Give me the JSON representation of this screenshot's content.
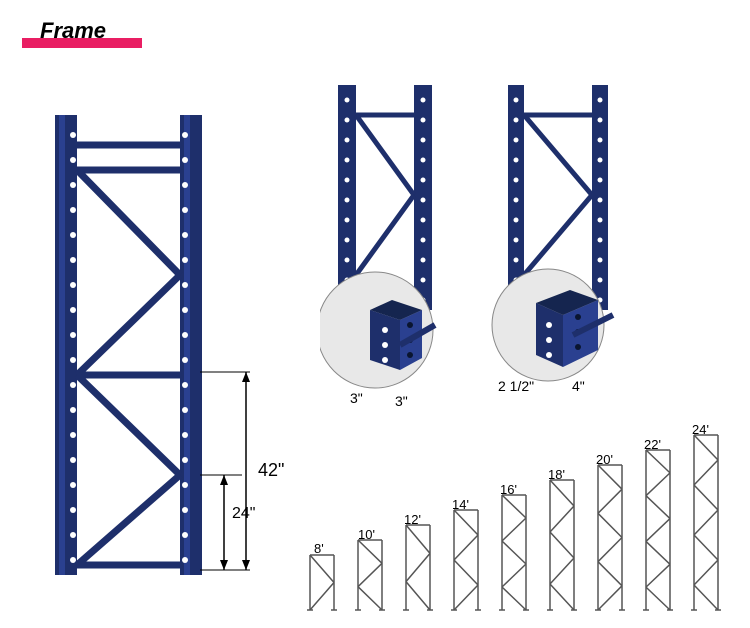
{
  "title": "Frame",
  "colors": {
    "accent_bar": "#e91e63",
    "frame_blue": "#1e2f6b",
    "frame_blue_light": "#2a4090",
    "frame_hole": "#ffffff",
    "detail_bg": "#e8e8e8",
    "outline_gray": "#555555",
    "dim_text": "#000000"
  },
  "dimensions": {
    "upper": "42\"",
    "lower": "24\""
  },
  "detail_a": {
    "left": "3\"",
    "right": "3\""
  },
  "detail_b": {
    "left": "2 1/2\"",
    "right": "4\""
  },
  "heights": [
    "8'",
    "10'",
    "12'",
    "14'",
    "16'",
    "18'",
    "20'",
    "22'",
    "24'"
  ]
}
